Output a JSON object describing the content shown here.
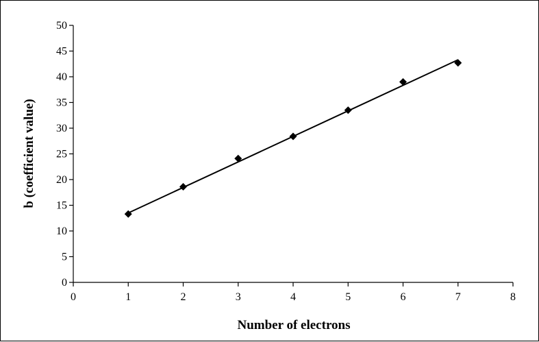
{
  "chart_data": {
    "type": "scatter",
    "title": "",
    "xlabel": "Number of electrons",
    "ylabel": "b (coefficient value)",
    "xlim": [
      0,
      8
    ],
    "ylim": [
      0,
      50
    ],
    "x_ticks": [
      0,
      1,
      2,
      3,
      4,
      5,
      6,
      7,
      8
    ],
    "y_ticks": [
      0,
      5,
      10,
      15,
      20,
      25,
      30,
      35,
      40,
      45,
      50
    ],
    "grid": false,
    "legend": "none",
    "series": [
      {
        "x": [
          1,
          2,
          3,
          4,
          5,
          6,
          7
        ],
        "y": [
          13.3,
          18.6,
          24.1,
          28.4,
          33.5,
          39.0,
          42.7
        ],
        "marker": "diamond",
        "color": "#000000"
      }
    ],
    "trendline": {
      "type": "linear",
      "x": [
        1,
        7
      ],
      "y": [
        13.5,
        43.3
      ],
      "color": "#000000"
    }
  }
}
